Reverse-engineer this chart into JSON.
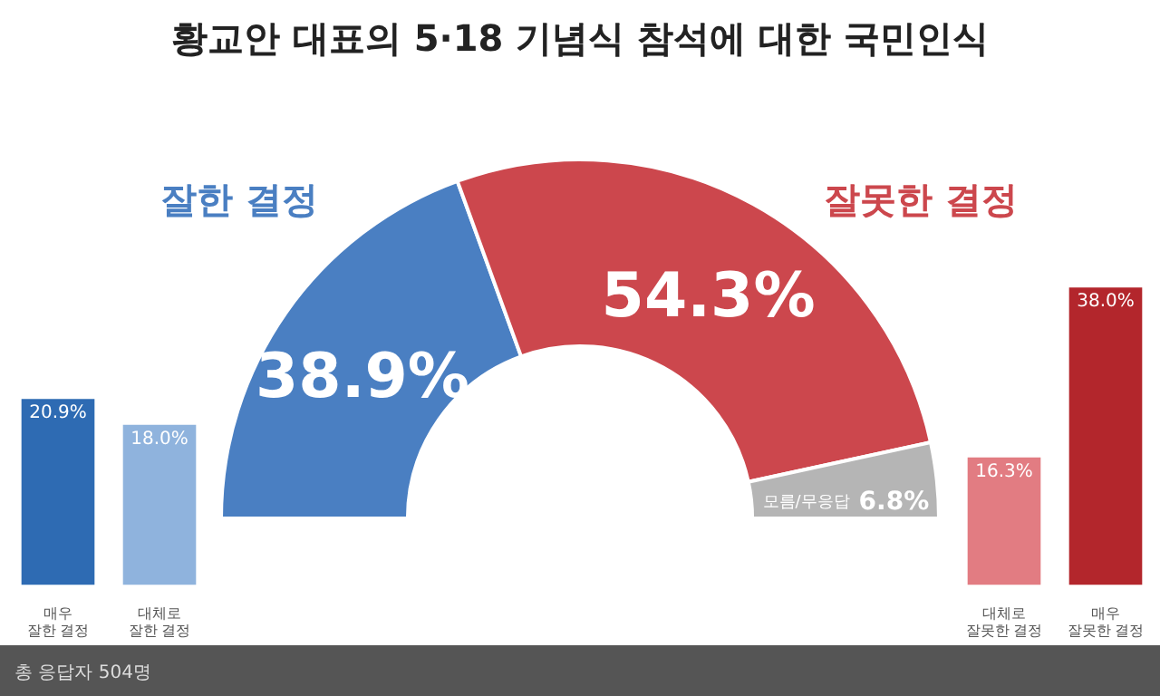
{
  "chart_data": [
    {
      "type": "donut",
      "title": "황교안 대표의 5·18 기념식 참석에 대한 국민인식",
      "categories": [
        "잘한 결정",
        "잘못한 결정",
        "모름/무응답"
      ],
      "values": [
        38.9,
        54.3,
        6.8
      ],
      "colors": [
        "#4a7fc2",
        "#cc474d",
        "#b5b5b5"
      ],
      "value_labels": [
        "38.9%",
        "54.3%",
        "6.8%"
      ],
      "annotations": [
        "총 응답자 504명"
      ]
    },
    {
      "type": "bar",
      "categories": [
        "매우 잘한 결정",
        "대체로 잘한 결정"
      ],
      "values": [
        20.9,
        18.0
      ],
      "colors": [
        "#2e6bb3",
        "#8fb3dd"
      ],
      "value_labels": [
        "20.9%",
        "18.0%"
      ]
    },
    {
      "type": "bar",
      "categories": [
        "대체로 잘못한 결정",
        "매우 잘못한 결정"
      ],
      "values": [
        16.3,
        38.0
      ],
      "colors": [
        "#e27c82",
        "#b3262c"
      ],
      "value_labels": [
        "16.3%",
        "38.0%"
      ]
    }
  ]
}
